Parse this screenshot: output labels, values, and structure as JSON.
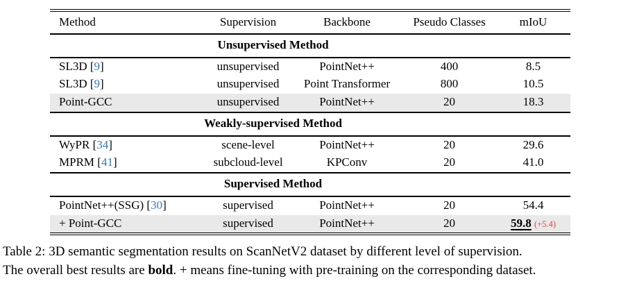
{
  "colors": {
    "citation_blue": "#3d74b6",
    "gain_red": "#e8403a",
    "row_highlight_gray": "#e9e9e9",
    "rule_black": "#000000",
    "page_background": "#ffffff"
  },
  "table": {
    "columns": [
      "Method",
      "Supervision",
      "Backbone",
      "Pseudo Classes",
      "mIoU"
    ],
    "sections": [
      {
        "title": "Unsupervised Method",
        "rows": [
          {
            "method": "SL3D",
            "cite_open": " [",
            "cite_num": "9",
            "cite_close": "]",
            "supervision": "unsupervised",
            "backbone": "PointNet++",
            "pseudo_classes": "400",
            "miou": "8.5",
            "gain": ""
          },
          {
            "method": "SL3D",
            "cite_open": " [",
            "cite_num": "9",
            "cite_close": "]",
            "supervision": "unsupervised",
            "backbone": "Point Transformer",
            "pseudo_classes": "800",
            "miou": "10.5",
            "gain": ""
          },
          {
            "method": "Point-GCC",
            "cite_open": "",
            "cite_num": "",
            "cite_close": "",
            "supervision": "unsupervised",
            "backbone": "PointNet++",
            "pseudo_classes": "20",
            "miou": "18.3",
            "gain": ""
          }
        ]
      },
      {
        "title": "Weakly-supervised Method",
        "rows": [
          {
            "method": "WyPR",
            "cite_open": " [",
            "cite_num": "34",
            "cite_close": "]",
            "supervision": "scene-level",
            "backbone": "PointNet++",
            "pseudo_classes": "20",
            "miou": "29.6",
            "gain": ""
          },
          {
            "method": "MPRM",
            "cite_open": " [",
            "cite_num": "41",
            "cite_close": "]",
            "supervision": "subcloud-level",
            "backbone": "KPConv",
            "pseudo_classes": "20",
            "miou": "41.0",
            "gain": ""
          }
        ]
      },
      {
        "title": "Supervised Method",
        "rows": [
          {
            "method": "PointNet++(SSG)",
            "cite_open": " [",
            "cite_num": "30",
            "cite_close": "]",
            "supervision": "supervised",
            "backbone": "PointNet++",
            "pseudo_classes": "20",
            "miou": "54.4",
            "gain": ""
          },
          {
            "method": "+ Point-GCC",
            "cite_open": "",
            "cite_num": "",
            "cite_close": "",
            "supervision": "supervised",
            "backbone": "PointNet++",
            "pseudo_classes": "20",
            "miou": "59.8",
            "gain": "(+5.4)"
          }
        ]
      }
    ]
  },
  "caption": {
    "line1": "Table 2: 3D semantic segmentation results on ScanNetV2 dataset by different level of supervision.",
    "line2_pre": "The overall best results are ",
    "line2_bold": "bold",
    "line2_post": ". + means fine-tuning with pre-training on the corresponding dataset."
  }
}
